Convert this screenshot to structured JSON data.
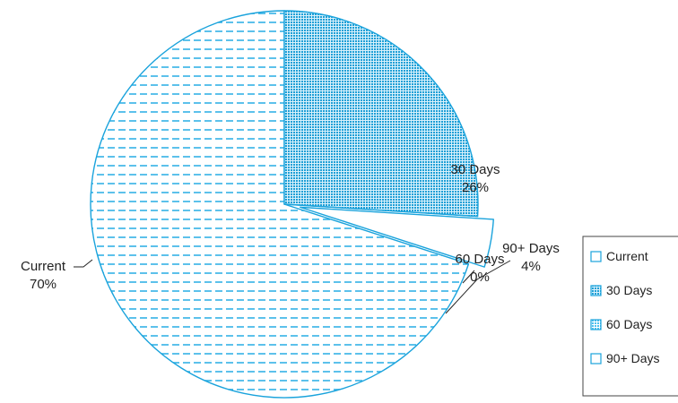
{
  "chart_data": {
    "type": "pie",
    "categories": [
      "Current",
      "30 Days",
      "60 Days",
      "90+ Days"
    ],
    "values": [
      70,
      26,
      0,
      4
    ],
    "labels": [
      "Current\n70%",
      "30 Days\n26%",
      "60 Days\n0%",
      "90+ Days\n4%"
    ],
    "legend": {
      "position": "right",
      "entries": [
        "Current",
        "30 Days",
        "60 Days",
        "90+ Days"
      ]
    },
    "exploded": "90+ Days",
    "colors": {
      "outline": "#1aa3dc",
      "stripe": "#33b2e6",
      "dot": "#4cc1ef",
      "fill_light": "#ffffff"
    }
  }
}
